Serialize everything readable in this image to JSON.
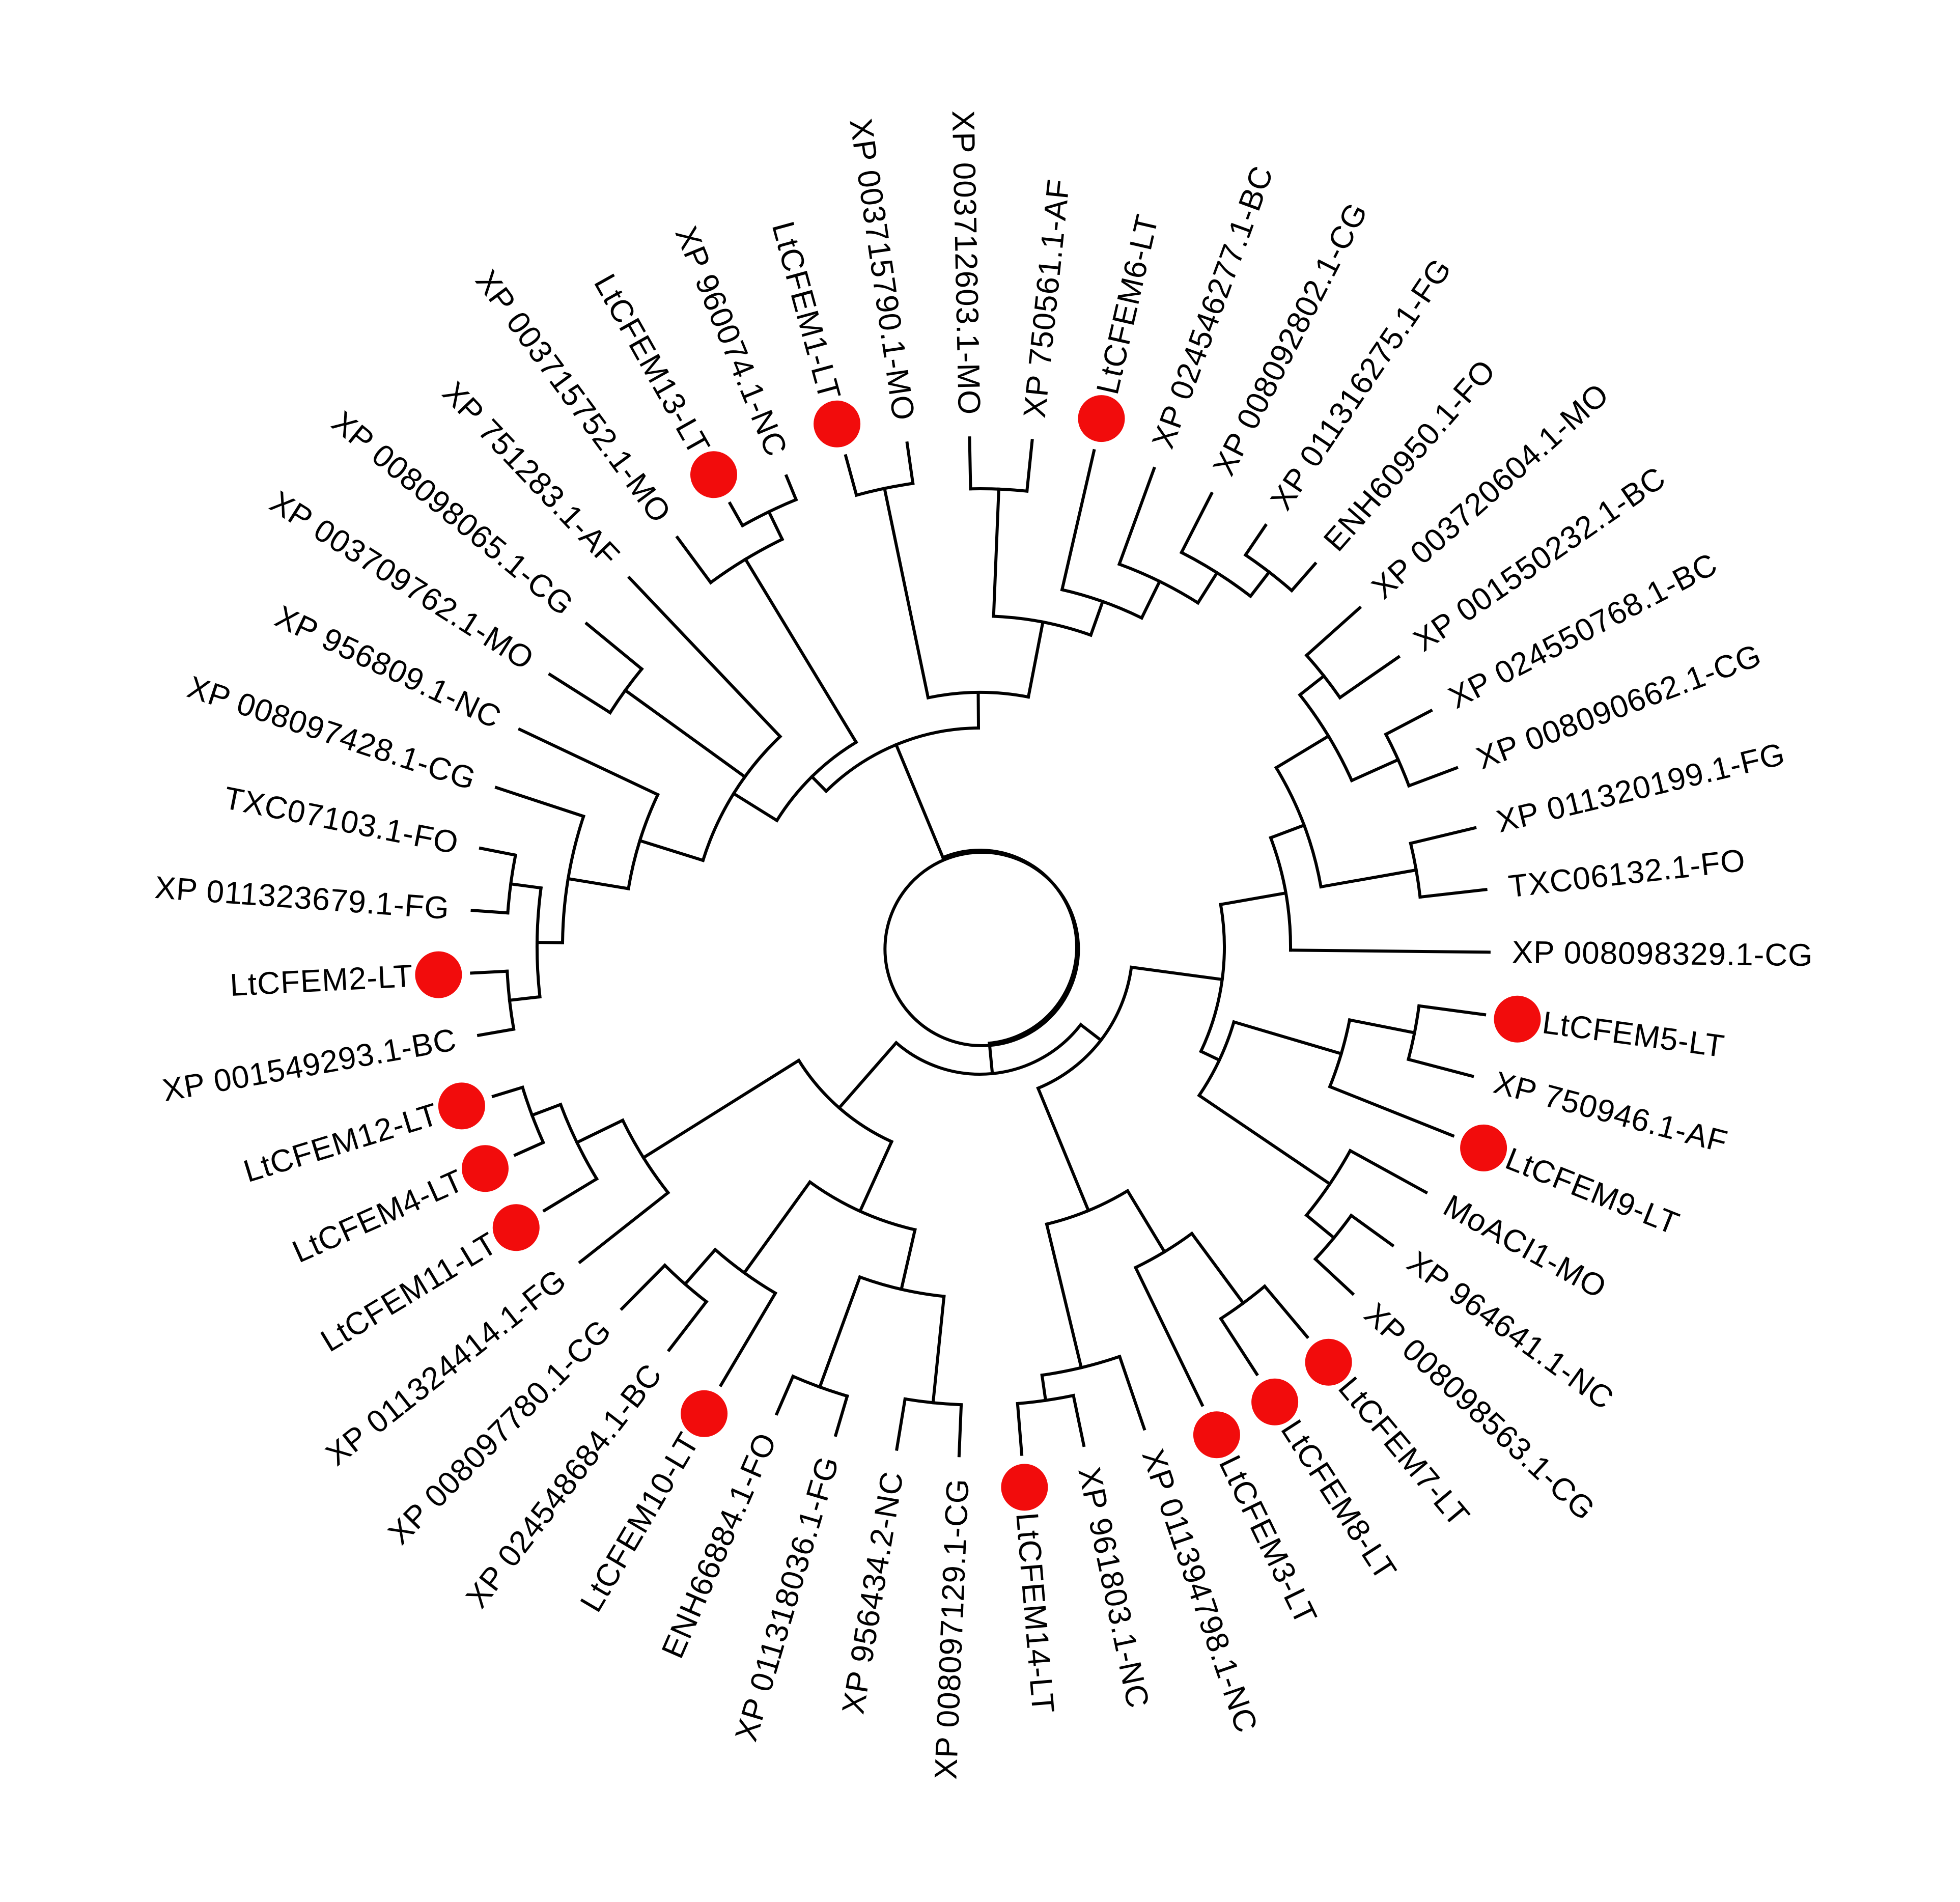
{
  "tree": {
    "line_color": "#000000",
    "marker_color": "#f20c0c",
    "leaves": [
      {
        "label": "XP 001549293.1-BC",
        "marked": false
      },
      {
        "label": "LtCFEM2-LT",
        "marked": true
      },
      {
        "label": "XP 011323679.1-FG",
        "marked": false
      },
      {
        "label": "TXC07103.1-FO",
        "marked": false
      },
      {
        "label": "XP 008097428.1-CG",
        "marked": false
      },
      {
        "label": "XP 956809.1-NC",
        "marked": false
      },
      {
        "label": "XP 003709762.1-MO",
        "marked": false
      },
      {
        "label": "XP 008098065.1-CG",
        "marked": false
      },
      {
        "label": "XP 751283.1-AF",
        "marked": false
      },
      {
        "label": "XP 003715752.1-MO",
        "marked": false
      },
      {
        "label": "LtCFEM13-LT",
        "marked": true
      },
      {
        "label": "XP 960074.1-NC",
        "marked": false
      },
      {
        "label": "LtCFEM1-LT",
        "marked": true
      },
      {
        "label": "XP 003715790.1-MO",
        "marked": false
      },
      {
        "label": "XP 003712603.1-MO",
        "marked": false
      },
      {
        "label": "XP 750561.1-AF",
        "marked": false
      },
      {
        "label": "LtCFEM6-LT",
        "marked": true
      },
      {
        "label": "XP 024546277.1-BC",
        "marked": false
      },
      {
        "label": "XP 008092802.1-CG",
        "marked": false
      },
      {
        "label": "XP 011316275.1-FG",
        "marked": false
      },
      {
        "label": "ENH60950.1-FO",
        "marked": false
      },
      {
        "label": "XP 003720604.1-MO",
        "marked": false
      },
      {
        "label": "XP 001550232.1-BC",
        "marked": false
      },
      {
        "label": "XP 024550768.1-BC",
        "marked": false
      },
      {
        "label": "XP 008090662.1-CG",
        "marked": false
      },
      {
        "label": "XP 011320199.1-FG",
        "marked": false
      },
      {
        "label": "TXC06132.1-FO",
        "marked": false
      },
      {
        "label": "XP 008098329.1-CG",
        "marked": false
      },
      {
        "label": "LtCFEM5-LT",
        "marked": true
      },
      {
        "label": "XP 750946.1-AF",
        "marked": false
      },
      {
        "label": "LtCFEM9-LT",
        "marked": true
      },
      {
        "label": "MoACI1-MO",
        "marked": false
      },
      {
        "label": "XP 964641.1-NC",
        "marked": false
      },
      {
        "label": "XP 008098563.1-CG",
        "marked": false
      },
      {
        "label": "LtCFEM7-LT",
        "marked": true
      },
      {
        "label": "LtCFEM8-LT",
        "marked": true
      },
      {
        "label": "LtCFEM3-LT",
        "marked": true
      },
      {
        "label": "XP 011394798.1-NC",
        "marked": false
      },
      {
        "label": "XP 961803.1-NC",
        "marked": false
      },
      {
        "label": "LtCFEM14-LT",
        "marked": true
      },
      {
        "label": "XP 008097129.1-CG",
        "marked": false
      },
      {
        "label": "XP 956434.2-NC",
        "marked": false
      },
      {
        "label": "XP 011318036.1-FG",
        "marked": false
      },
      {
        "label": "ENH66884.1-FO",
        "marked": false
      },
      {
        "label": "LtCFEM10-LT",
        "marked": true
      },
      {
        "label": "XP 024548684.1-BC",
        "marked": false
      },
      {
        "label": "XP 008097780.1-CG",
        "marked": false
      },
      {
        "label": "XP 011324414.1-FG",
        "marked": false
      },
      {
        "label": "LtCFEM11-LT",
        "marked": true
      },
      {
        "label": "LtCFEM4-LT",
        "marked": true
      },
      {
        "label": "LtCFEM12-LT",
        "marked": true
      }
    ]
  }
}
